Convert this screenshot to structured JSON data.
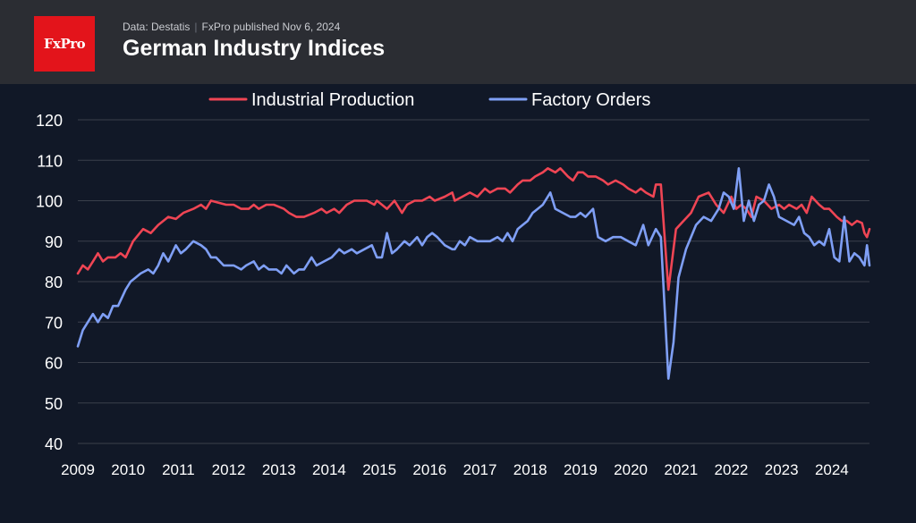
{
  "header": {
    "logo_text": "FxPro",
    "source": "Data: Destatis",
    "published": "FxPro published Nov 6, 2024",
    "title": "German Industry Indices"
  },
  "colors": {
    "background": "#111827",
    "header_bg": "#2b2d33",
    "brand_red": "#e3141b",
    "industrial_production": "#ef4554",
    "factory_orders": "#7f9ff5",
    "grid": "#3a3f4b",
    "text": "#ffffff"
  },
  "chart_data": {
    "type": "line",
    "title": "German Industry Indices",
    "xlabel": "",
    "ylabel": "",
    "xlim": [
      2009.0,
      2024.75
    ],
    "ylim": [
      40,
      120
    ],
    "yticks": [
      40,
      50,
      60,
      70,
      80,
      90,
      100,
      110,
      120
    ],
    "xticks": [
      "2009",
      "2010",
      "2011",
      "2012",
      "2013",
      "2014",
      "2015",
      "2016",
      "2017",
      "2018",
      "2019",
      "2020",
      "2021",
      "2022",
      "2023",
      "2024"
    ],
    "grid": "horizontal",
    "legend_position": "top-center",
    "series": [
      {
        "name": "Industrial Production",
        "color": "#ef4554",
        "points": [
          [
            2009.0,
            82
          ],
          [
            2009.1,
            84
          ],
          [
            2009.2,
            83
          ],
          [
            2009.3,
            85
          ],
          [
            2009.4,
            87
          ],
          [
            2009.5,
            85
          ],
          [
            2009.6,
            86
          ],
          [
            2009.75,
            86
          ],
          [
            2009.85,
            87
          ],
          [
            2009.95,
            86
          ],
          [
            2010.1,
            90
          ],
          [
            2010.3,
            93
          ],
          [
            2010.45,
            92
          ],
          [
            2010.6,
            94
          ],
          [
            2010.8,
            96
          ],
          [
            2010.95,
            95.5
          ],
          [
            2011.1,
            97
          ],
          [
            2011.3,
            98
          ],
          [
            2011.45,
            99
          ],
          [
            2011.55,
            98
          ],
          [
            2011.65,
            100
          ],
          [
            2011.8,
            99.5
          ],
          [
            2011.95,
            99
          ],
          [
            2012.1,
            99
          ],
          [
            2012.25,
            98
          ],
          [
            2012.4,
            98
          ],
          [
            2012.5,
            99
          ],
          [
            2012.6,
            98
          ],
          [
            2012.75,
            99
          ],
          [
            2012.9,
            99
          ],
          [
            2013.1,
            98
          ],
          [
            2013.2,
            97
          ],
          [
            2013.35,
            96
          ],
          [
            2013.5,
            96
          ],
          [
            2013.7,
            97
          ],
          [
            2013.85,
            98
          ],
          [
            2013.95,
            97
          ],
          [
            2014.1,
            98
          ],
          [
            2014.2,
            97
          ],
          [
            2014.35,
            99
          ],
          [
            2014.5,
            100
          ],
          [
            2014.6,
            100
          ],
          [
            2014.75,
            100
          ],
          [
            2014.9,
            99
          ],
          [
            2014.95,
            100
          ],
          [
            2015.05,
            99
          ],
          [
            2015.15,
            98
          ],
          [
            2015.3,
            100
          ],
          [
            2015.45,
            97
          ],
          [
            2015.55,
            99
          ],
          [
            2015.7,
            100
          ],
          [
            2015.85,
            100
          ],
          [
            2016.0,
            101
          ],
          [
            2016.1,
            100
          ],
          [
            2016.3,
            101
          ],
          [
            2016.45,
            102
          ],
          [
            2016.5,
            100
          ],
          [
            2016.65,
            101
          ],
          [
            2016.8,
            102
          ],
          [
            2016.95,
            101
          ],
          [
            2017.1,
            103
          ],
          [
            2017.2,
            102
          ],
          [
            2017.35,
            103
          ],
          [
            2017.5,
            103
          ],
          [
            2017.6,
            102
          ],
          [
            2017.75,
            104
          ],
          [
            2017.85,
            105
          ],
          [
            2018.0,
            105
          ],
          [
            2018.1,
            106
          ],
          [
            2018.25,
            107
          ],
          [
            2018.35,
            108
          ],
          [
            2018.5,
            107
          ],
          [
            2018.6,
            108
          ],
          [
            2018.75,
            106
          ],
          [
            2018.85,
            105
          ],
          [
            2018.95,
            107
          ],
          [
            2019.05,
            107
          ],
          [
            2019.15,
            106
          ],
          [
            2019.3,
            106
          ],
          [
            2019.45,
            105
          ],
          [
            2019.55,
            104
          ],
          [
            2019.7,
            105
          ],
          [
            2019.85,
            104
          ],
          [
            2019.95,
            103
          ],
          [
            2020.1,
            102
          ],
          [
            2020.2,
            103
          ],
          [
            2020.3,
            102
          ],
          [
            2020.45,
            101
          ],
          [
            2020.5,
            104
          ],
          [
            2020.6,
            104
          ],
          [
            2020.75,
            78
          ],
          [
            2020.9,
            93
          ],
          [
            2021.05,
            95
          ],
          [
            2021.2,
            97
          ],
          [
            2021.35,
            101
          ],
          [
            2021.55,
            102
          ],
          [
            2021.7,
            99
          ],
          [
            2021.85,
            97
          ],
          [
            2022.0,
            101
          ],
          [
            2022.1,
            98
          ],
          [
            2022.2,
            99
          ],
          [
            2022.3,
            98
          ],
          [
            2022.4,
            96
          ],
          [
            2022.5,
            101
          ],
          [
            2022.65,
            100
          ],
          [
            2022.8,
            98
          ],
          [
            2022.95,
            99
          ],
          [
            2023.05,
            98
          ],
          [
            2023.15,
            99
          ],
          [
            2023.3,
            98
          ],
          [
            2023.4,
            99
          ],
          [
            2023.5,
            97
          ],
          [
            2023.6,
            101
          ],
          [
            2023.75,
            99
          ],
          [
            2023.85,
            98
          ],
          [
            2023.95,
            98
          ],
          [
            2024.1,
            96
          ],
          [
            2024.2,
            95
          ],
          [
            2024.3,
            95
          ],
          [
            2024.4,
            94
          ],
          [
            2024.5,
            95
          ],
          [
            2024.6,
            94.5
          ],
          [
            2024.65,
            92
          ],
          [
            2024.7,
            91
          ],
          [
            2024.75,
            93
          ]
        ]
      },
      {
        "name": "Factory Orders",
        "color": "#7f9ff5",
        "points": [
          [
            2009.0,
            64
          ],
          [
            2009.1,
            68
          ],
          [
            2009.2,
            70
          ],
          [
            2009.3,
            72
          ],
          [
            2009.4,
            70
          ],
          [
            2009.5,
            72
          ],
          [
            2009.6,
            71
          ],
          [
            2009.7,
            74
          ],
          [
            2009.8,
            74
          ],
          [
            2009.95,
            78
          ],
          [
            2010.05,
            80
          ],
          [
            2010.15,
            81
          ],
          [
            2010.25,
            82
          ],
          [
            2010.4,
            83
          ],
          [
            2010.5,
            82
          ],
          [
            2010.6,
            84
          ],
          [
            2010.7,
            87
          ],
          [
            2010.8,
            85
          ],
          [
            2010.95,
            89
          ],
          [
            2011.05,
            87
          ],
          [
            2011.15,
            88
          ],
          [
            2011.3,
            90
          ],
          [
            2011.45,
            89
          ],
          [
            2011.55,
            88
          ],
          [
            2011.65,
            86
          ],
          [
            2011.75,
            86
          ],
          [
            2011.9,
            84
          ],
          [
            2012.0,
            84
          ],
          [
            2012.1,
            84
          ],
          [
            2012.25,
            83
          ],
          [
            2012.35,
            84
          ],
          [
            2012.5,
            85
          ],
          [
            2012.6,
            83
          ],
          [
            2012.7,
            84
          ],
          [
            2012.8,
            83
          ],
          [
            2012.95,
            83
          ],
          [
            2013.05,
            82
          ],
          [
            2013.15,
            84
          ],
          [
            2013.3,
            82
          ],
          [
            2013.4,
            83
          ],
          [
            2013.5,
            83
          ],
          [
            2013.65,
            86
          ],
          [
            2013.75,
            84
          ],
          [
            2013.9,
            85
          ],
          [
            2014.05,
            86
          ],
          [
            2014.2,
            88
          ],
          [
            2014.3,
            87
          ],
          [
            2014.45,
            88
          ],
          [
            2014.55,
            87
          ],
          [
            2014.7,
            88
          ],
          [
            2014.85,
            89
          ],
          [
            2014.95,
            86
          ],
          [
            2015.05,
            86
          ],
          [
            2015.15,
            92
          ],
          [
            2015.25,
            87
          ],
          [
            2015.35,
            88
          ],
          [
            2015.5,
            90
          ],
          [
            2015.6,
            89
          ],
          [
            2015.75,
            91
          ],
          [
            2015.85,
            89
          ],
          [
            2015.95,
            91
          ],
          [
            2016.05,
            92
          ],
          [
            2016.15,
            91
          ],
          [
            2016.3,
            89
          ],
          [
            2016.45,
            88
          ],
          [
            2016.5,
            88
          ],
          [
            2016.6,
            90
          ],
          [
            2016.7,
            89
          ],
          [
            2016.8,
            91
          ],
          [
            2016.95,
            90
          ],
          [
            2017.05,
            90
          ],
          [
            2017.2,
            90
          ],
          [
            2017.35,
            91
          ],
          [
            2017.45,
            90
          ],
          [
            2017.55,
            92
          ],
          [
            2017.65,
            90
          ],
          [
            2017.75,
            93
          ],
          [
            2017.85,
            94
          ],
          [
            2017.95,
            95
          ],
          [
            2018.05,
            97
          ],
          [
            2018.15,
            98
          ],
          [
            2018.25,
            99
          ],
          [
            2018.4,
            102
          ],
          [
            2018.5,
            98
          ],
          [
            2018.65,
            97
          ],
          [
            2018.8,
            96
          ],
          [
            2018.9,
            96
          ],
          [
            2019.0,
            97
          ],
          [
            2019.1,
            96
          ],
          [
            2019.25,
            98
          ],
          [
            2019.35,
            91
          ],
          [
            2019.5,
            90
          ],
          [
            2019.65,
            91
          ],
          [
            2019.8,
            91
          ],
          [
            2019.95,
            90
          ],
          [
            2020.1,
            89
          ],
          [
            2020.25,
            94
          ],
          [
            2020.35,
            89
          ],
          [
            2020.5,
            93
          ],
          [
            2020.6,
            91
          ],
          [
            2020.75,
            56
          ],
          [
            2020.85,
            65
          ],
          [
            2020.95,
            81
          ],
          [
            2021.1,
            88
          ],
          [
            2021.3,
            94
          ],
          [
            2021.45,
            96
          ],
          [
            2021.6,
            95
          ],
          [
            2021.75,
            98
          ],
          [
            2021.85,
            102
          ],
          [
            2021.95,
            101
          ],
          [
            2022.05,
            98
          ],
          [
            2022.15,
            108
          ],
          [
            2022.25,
            95
          ],
          [
            2022.35,
            100
          ],
          [
            2022.45,
            95
          ],
          [
            2022.55,
            99
          ],
          [
            2022.65,
            100
          ],
          [
            2022.75,
            104
          ],
          [
            2022.85,
            101
          ],
          [
            2022.95,
            96
          ],
          [
            2023.1,
            95
          ],
          [
            2023.25,
            94
          ],
          [
            2023.35,
            96
          ],
          [
            2023.45,
            92
          ],
          [
            2023.55,
            91
          ],
          [
            2023.65,
            89
          ],
          [
            2023.75,
            90
          ],
          [
            2023.85,
            89
          ],
          [
            2023.95,
            93
          ],
          [
            2024.05,
            86
          ],
          [
            2024.15,
            85
          ],
          [
            2024.25,
            96
          ],
          [
            2024.35,
            85
          ],
          [
            2024.45,
            87
          ],
          [
            2024.55,
            86
          ],
          [
            2024.6,
            85
          ],
          [
            2024.65,
            84
          ],
          [
            2024.7,
            89
          ],
          [
            2024.75,
            84
          ]
        ]
      }
    ]
  }
}
